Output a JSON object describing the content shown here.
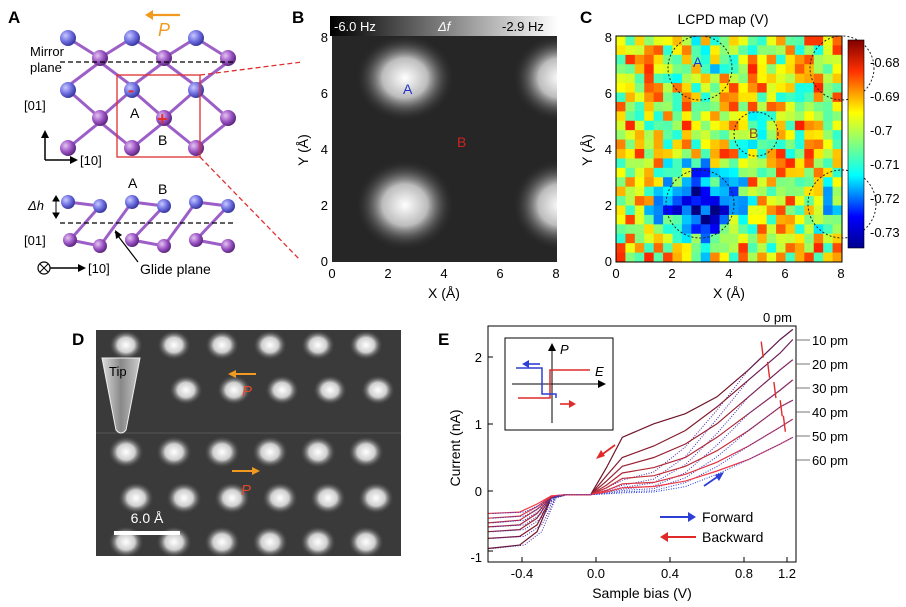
{
  "panels": {
    "A": {
      "letter": "A",
      "polarization_label": "P",
      "mirror_plane_line1": "Mirror",
      "mirror_plane_line2": "plane",
      "axis_01_top": "[01]",
      "axis_10_top": "[10]",
      "site_A_top": "A",
      "site_B_top": "B",
      "site_A_side": "A",
      "site_B_side": "B",
      "delta_h": "Δh",
      "axis_01_side": "[01]",
      "axis_10_side": "[10]",
      "glide_plane": "Glide plane",
      "minus_sign": "-",
      "plus_sign": "+"
    },
    "B": {
      "letter": "B",
      "colorbar_min": "-6.0 Hz",
      "colorbar_label": "Δf",
      "colorbar_max": "-2.9 Hz",
      "site_A": "A",
      "site_B": "B",
      "xlabel": "X (Å)",
      "ylabel": "Y (Å)",
      "xticks": [
        "0",
        "2",
        "4",
        "6",
        "8"
      ],
      "yticks": [
        "0",
        "2",
        "4",
        "6",
        "8"
      ]
    },
    "C": {
      "letter": "C",
      "title": "LCPD map (V)",
      "site_A": "A",
      "site_B": "B",
      "xlabel": "X (Å)",
      "ylabel": "Y (Å)",
      "xticks": [
        "0",
        "2",
        "4",
        "6",
        "8"
      ],
      "yticks": [
        "0",
        "2",
        "4",
        "6",
        "8"
      ],
      "colorbar_ticks": [
        "-0.68",
        "-0.69",
        "-0.7",
        "-0.71",
        "-0.72",
        "-0.73"
      ]
    },
    "D": {
      "letter": "D",
      "tip_label": "Tip",
      "polarization_top": "P",
      "polarization_bottom": "P",
      "scalebar_label": "6.0 Å"
    },
    "E": {
      "letter": "E",
      "xlabel": "Sample bias (V)",
      "ylabel": "Current (nA)",
      "xticks": [
        "-0.4",
        "0.0",
        "0.4",
        "0.8",
        "1.2"
      ],
      "yticks": [
        "-1",
        "0",
        "1",
        "2"
      ],
      "height_labels": [
        "0 pm",
        "10 pm",
        "20 pm",
        "30 pm",
        "40 pm",
        "50 pm",
        "60 pm"
      ],
      "legend_forward": "Forward",
      "legend_backward": "Backward",
      "inset_P": "P",
      "inset_E": "E"
    }
  },
  "chart_data": [
    {
      "type": "heatmap",
      "panel": "B",
      "xlabel": "X (Å)",
      "ylabel": "Y (Å)",
      "xlim": [
        0,
        8
      ],
      "ylim": [
        0,
        8
      ],
      "colorbar": [
        "-6.0 Hz",
        "-2.9 Hz"
      ],
      "colormap": "grayscale",
      "bright_spots_at": [
        [
          2.8,
          6.5
        ],
        [
          2.8,
          2.0
        ],
        [
          8.0,
          6.5
        ],
        [
          8.0,
          2.0
        ]
      ],
      "labels": [
        {
          "text": "A",
          "x": 2.8,
          "y": 6.3
        },
        {
          "text": "B",
          "x": 4.7,
          "y": 4.3
        }
      ]
    },
    {
      "type": "heatmap",
      "panel": "C",
      "title": "LCPD map (V)",
      "xlabel": "X (Å)",
      "ylabel": "Y (Å)",
      "xlim": [
        0,
        8
      ],
      "ylim": [
        0,
        8
      ],
      "colorbar_range": [
        -0.735,
        -0.675
      ],
      "colorbar_ticks": [
        -0.68,
        -0.69,
        -0.7,
        -0.71,
        -0.72,
        -0.73
      ],
      "colormap": "jet",
      "circled_regions": [
        {
          "label": "A",
          "center": [
            3.0,
            7.0
          ]
        },
        {
          "label": "B",
          "center": [
            5.0,
            4.5
          ]
        },
        {
          "center": [
            3.0,
            2.0
          ]
        },
        {
          "center": [
            8.0,
            2.0
          ]
        },
        {
          "center": [
            8.0,
            7.0
          ]
        }
      ]
    },
    {
      "type": "line",
      "panel": "E",
      "xlabel": "Sample bias (V)",
      "ylabel": "Current (nA)",
      "xlim": [
        -0.65,
        1.3
      ],
      "ylim": [
        -1.0,
        2.5
      ],
      "series": [
        {
          "name": "0 pm",
          "x": [
            -0.65,
            -0.45,
            -0.34,
            -0.25,
            -0.15,
            0.0,
            0.1,
            0.2,
            0.4,
            0.6,
            0.8,
            1.0,
            1.2,
            1.28
          ],
          "y": [
            -0.8,
            -0.75,
            -0.55,
            -0.05,
            0.0,
            0.0,
            0.4,
            0.85,
            1.05,
            1.2,
            1.45,
            1.85,
            2.3,
            2.45
          ]
        },
        {
          "name": "10 pm",
          "x": [
            -0.65,
            -0.45,
            -0.34,
            -0.25,
            -0.15,
            0.0,
            0.1,
            0.2,
            0.4,
            0.6,
            0.8,
            1.0,
            1.2,
            1.28
          ],
          "y": [
            -0.65,
            -0.62,
            -0.45,
            -0.05,
            0.0,
            0.0,
            0.28,
            0.55,
            0.72,
            0.95,
            1.3,
            1.7,
            2.1,
            2.3
          ]
        },
        {
          "name": "20 pm",
          "x": [
            -0.65,
            -0.45,
            -0.34,
            -0.25,
            -0.15,
            0.0,
            0.1,
            0.2,
            0.4,
            0.6,
            0.8,
            1.0,
            1.2,
            1.28
          ],
          "y": [
            -0.55,
            -0.52,
            -0.35,
            -0.04,
            0.0,
            0.0,
            0.2,
            0.42,
            0.55,
            0.75,
            1.05,
            1.45,
            1.85,
            2.0
          ]
        },
        {
          "name": "30 pm",
          "x": [
            -0.65,
            -0.45,
            -0.34,
            -0.25,
            -0.15,
            0.0,
            0.1,
            0.2,
            0.4,
            0.6,
            0.8,
            1.0,
            1.2,
            1.28
          ],
          "y": [
            -0.48,
            -0.45,
            -0.28,
            -0.03,
            0.0,
            0.0,
            0.14,
            0.32,
            0.4,
            0.55,
            0.85,
            1.2,
            1.55,
            1.7
          ]
        },
        {
          "name": "40 pm",
          "x": [
            -0.65,
            -0.45,
            -0.34,
            -0.25,
            -0.15,
            0.0,
            0.1,
            0.2,
            0.4,
            0.6,
            0.8,
            1.0,
            1.2,
            1.28
          ],
          "y": [
            -0.42,
            -0.38,
            -0.22,
            -0.03,
            0.0,
            0.0,
            0.1,
            0.24,
            0.28,
            0.42,
            0.65,
            0.95,
            1.3,
            1.4
          ]
        },
        {
          "name": "50 pm",
          "x": [
            -0.65,
            -0.45,
            -0.34,
            -0.25,
            -0.15,
            0.0,
            0.1,
            0.2,
            0.4,
            0.6,
            0.8,
            1.0,
            1.2,
            1.28
          ],
          "y": [
            -0.35,
            -0.32,
            -0.18,
            -0.02,
            0.0,
            0.0,
            0.06,
            0.16,
            0.18,
            0.3,
            0.48,
            0.72,
            1.0,
            1.12
          ]
        },
        {
          "name": "60 pm",
          "x": [
            -0.65,
            -0.45,
            -0.34,
            -0.25,
            -0.15,
            0.0,
            0.1,
            0.2,
            0.4,
            0.6,
            0.8,
            1.0,
            1.2,
            1.28
          ],
          "y": [
            -0.28,
            -0.26,
            -0.14,
            -0.02,
            0.0,
            0.0,
            0.04,
            0.1,
            0.12,
            0.2,
            0.35,
            0.52,
            0.75,
            0.85
          ]
        }
      ],
      "legend": [
        "Forward",
        "Backward"
      ],
      "colors": {
        "forward": "#2e3fd6",
        "backward": "#e02a2a",
        "dark": "#4a1020"
      }
    }
  ]
}
